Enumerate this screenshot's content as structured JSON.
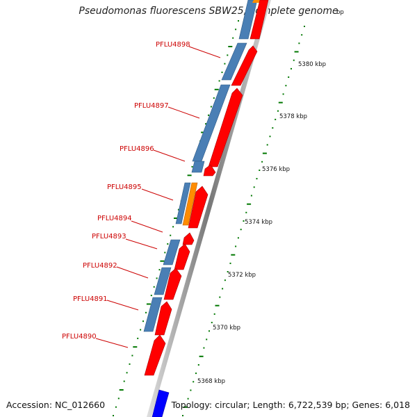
{
  "title": "Pseudomonas fluorescens SBW25, complete genome",
  "accession": "Accession: NC_012660",
  "summary": "Topology: circular; Length: 6,722,539 bp; Genes: 6,018",
  "top_partial_label": "bp",
  "scale_labels": [
    "5380 kbp",
    "5378 kbp",
    "5376 kbp",
    "5374 kbp",
    "5372 kbp",
    "5370 kbp",
    "5368 kbp"
  ],
  "gene_labels": [
    "PFLU4898",
    "PFLU4897",
    "PFLU4896",
    "PFLU4895",
    "PFLU4894",
    "PFLU4893",
    "PFLU4892",
    "PFLU4891",
    "PFLU4890"
  ],
  "colors": {
    "cds_forward": "#ff0000",
    "gene_blue": "#4a7fb5",
    "orange": "#ff8c00",
    "blue_bright": "#0000ff",
    "gene_label": "#cc0000",
    "tick_green": "#007700",
    "backbone": "#888888"
  }
}
